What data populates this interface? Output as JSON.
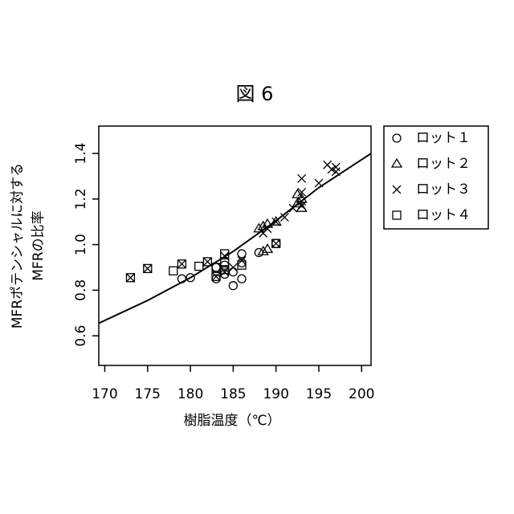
{
  "chart_data": {
    "type": "scatter",
    "title": "図 6",
    "xlabel": "樹脂温度（℃）",
    "ylabel": [
      "MFRポテンシャルに対する",
      "MFRの比率"
    ],
    "xlim": [
      169.3,
      201.1
    ],
    "ylim": [
      0.47,
      1.52
    ],
    "xticks": [
      170,
      175,
      180,
      185,
      190,
      195,
      200
    ],
    "yticks": [
      0.6,
      0.8,
      {
        "value": 1,
        "label": "1.0"
      },
      1.2,
      1.4
    ],
    "series": [
      {
        "name": "ロット１",
        "marker": "circle",
        "color": "#000000",
        "x": [
          179,
          180,
          183,
          184,
          185,
          185,
          186,
          186,
          186,
          188,
          190,
          183,
          184
        ],
        "values": [
          0.85,
          0.855,
          0.85,
          0.87,
          0.82,
          0.88,
          0.85,
          0.96,
          0.92,
          0.965,
          1.005,
          0.9,
          0.91
        ]
      },
      {
        "name": "ロット２",
        "marker": "triangle",
        "color": "#000000",
        "x": [
          188,
          188.5,
          189,
          188.5,
          189,
          192.5,
          193,
          192.5,
          193,
          190
        ],
        "values": [
          1.07,
          1.08,
          1.09,
          0.97,
          0.98,
          1.22,
          1.2,
          1.18,
          1.16,
          1.1
        ]
      },
      {
        "name": "ロット３",
        "marker": "cross",
        "color": "#000000",
        "x": [
          188.5,
          189,
          190,
          191,
          192,
          193,
          193,
          193,
          193,
          195,
          196,
          196.5,
          197,
          197,
          184,
          185,
          183,
          186,
          184,
          173,
          175,
          179,
          182,
          190
        ],
        "values": [
          1.05,
          1.07,
          1.1,
          1.12,
          1.16,
          1.29,
          1.23,
          1.19,
          1.17,
          1.27,
          1.35,
          1.33,
          1.34,
          1.32,
          0.88,
          0.9,
          0.86,
          0.93,
          0.95,
          0.855,
          0.895,
          0.915,
          0.925,
          1.005
        ]
      },
      {
        "name": "ロット４",
        "marker": "square",
        "color": "#000000",
        "x": [
          173,
          175,
          178,
          179,
          181,
          182,
          183,
          184,
          184,
          184,
          186,
          183,
          190
        ],
        "values": [
          0.855,
          0.895,
          0.885,
          0.915,
          0.905,
          0.925,
          0.9,
          0.96,
          0.92,
          0.89,
          0.91,
          0.86,
          1.005
        ]
      }
    ],
    "curve": {
      "x": [
        169.3,
        175,
        180,
        185,
        190,
        195,
        201.1
      ],
      "values": [
        0.655,
        0.755,
        0.855,
        0.97,
        1.105,
        1.25,
        1.4
      ]
    }
  }
}
